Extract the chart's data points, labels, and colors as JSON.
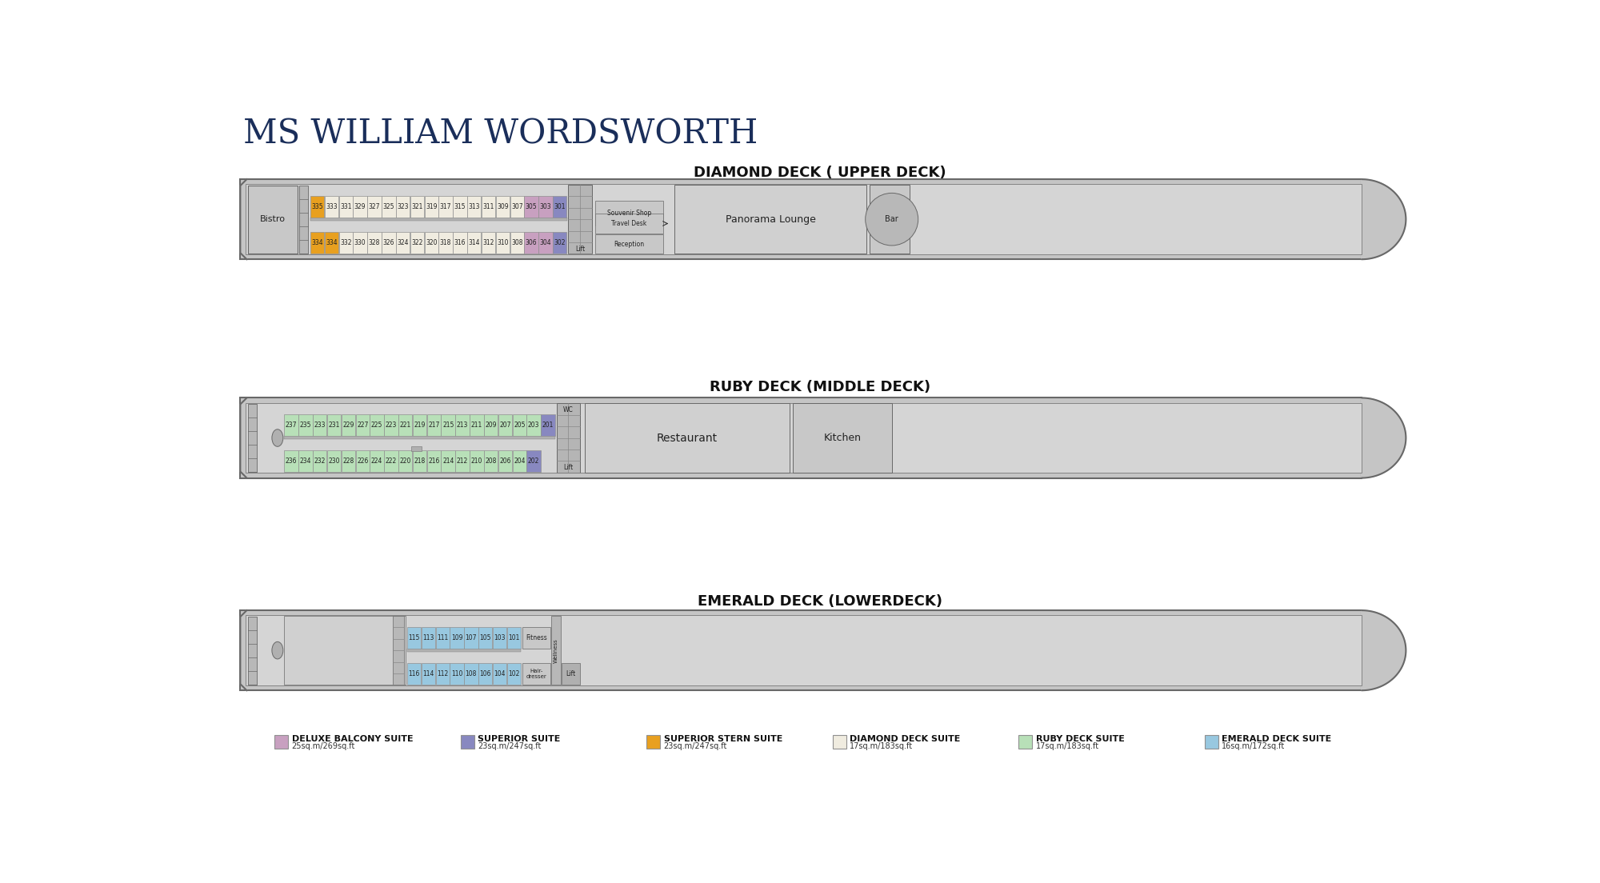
{
  "title": "MS WILLIAM WORDSWORTH",
  "bg_color": "#ffffff",
  "ship_hull": "#c8c8c8",
  "ship_outline": "#707070",
  "ship_inner": "#d8d8d8",
  "diamond_title": "DIAMOND DECK ( UPPER DECK)",
  "ruby_title": "RUBY DECK (MIDDLE DECK)",
  "emerald_title": "EMERALD DECK (LOWERDECK)",
  "color_deluxe": "#c8a0c0",
  "color_superior": "#8888c0",
  "color_stern": "#e8a020",
  "color_diamond": "#f0ece0",
  "color_ruby": "#b8e0b8",
  "color_emerald": "#98c8e0",
  "color_gray_room": "#c0c0c0",
  "legend": [
    {
      "label": "DELUXE BALCONY SUITE",
      "sub": "25sq.m/269sq.ft",
      "color": "#c8a0c0"
    },
    {
      "label": "SUPERIOR SUITE",
      "sub": "23sq.m/247sq.ft",
      "color": "#8888c0"
    },
    {
      "label": "SUPERIOR STERN SUITE",
      "sub": "23sq.m/247sq.ft",
      "color": "#e8a020"
    },
    {
      "label": "DIAMOND DECK SUITE",
      "sub": "17sq.m/183sq.ft",
      "color": "#f0ece0"
    },
    {
      "label": "RUBY DECK SUITE",
      "sub": "17sq.m/183sq.ft",
      "color": "#b8e0b8"
    },
    {
      "label": "EMERALD DECK SUITE",
      "sub": "16sq.m/172sq.ft",
      "color": "#98c8e0"
    }
  ],
  "diamond_upper_odd": [
    335,
    333,
    331,
    329,
    327,
    325,
    323,
    321,
    319,
    317,
    315,
    313,
    311,
    309,
    307,
    305,
    303,
    301
  ],
  "diamond_upper_colors": [
    "stern",
    "dd",
    "dd",
    "dd",
    "dd",
    "dd",
    "dd",
    "dd",
    "dd",
    "dd",
    "dd",
    "dd",
    "dd",
    "dd",
    "dd",
    "deluxe",
    "deluxe",
    "superior"
  ],
  "diamond_lower_even": [
    334,
    332,
    330,
    328,
    326,
    324,
    322,
    320,
    318,
    316,
    314,
    312,
    310,
    308,
    306,
    304,
    302
  ],
  "diamond_lower_colors": [
    "stern",
    "dd",
    "dd",
    "dd",
    "dd",
    "dd",
    "dd",
    "dd",
    "dd",
    "dd",
    "dd",
    "dd",
    "dd",
    "dd",
    "deluxe",
    "deluxe",
    "superior"
  ],
  "ruby_upper_odd": [
    237,
    235,
    233,
    231,
    229,
    227,
    225,
    223,
    221,
    219,
    217,
    215,
    213,
    211,
    209,
    207,
    205,
    203,
    201
  ],
  "ruby_upper_colors": [
    "ruby",
    "ruby",
    "ruby",
    "ruby",
    "ruby",
    "ruby",
    "ruby",
    "ruby",
    "ruby",
    "ruby",
    "ruby",
    "ruby",
    "ruby",
    "ruby",
    "ruby",
    "ruby",
    "ruby",
    "ruby",
    "superior"
  ],
  "ruby_lower_even": [
    236,
    234,
    232,
    230,
    228,
    226,
    224,
    222,
    220,
    218,
    216,
    214,
    212,
    210,
    208,
    206,
    204,
    202
  ],
  "ruby_lower_colors": [
    "ruby",
    "ruby",
    "ruby",
    "ruby",
    "ruby",
    "ruby",
    "ruby",
    "ruby",
    "ruby",
    "ruby",
    "ruby",
    "ruby",
    "ruby",
    "ruby",
    "ruby",
    "ruby",
    "ruby",
    "superior"
  ],
  "emerald_upper_odd": [
    115,
    113,
    111,
    109,
    107,
    105,
    103,
    101
  ],
  "emerald_lower_even": [
    116,
    114,
    112,
    110,
    108,
    106,
    104,
    102
  ]
}
